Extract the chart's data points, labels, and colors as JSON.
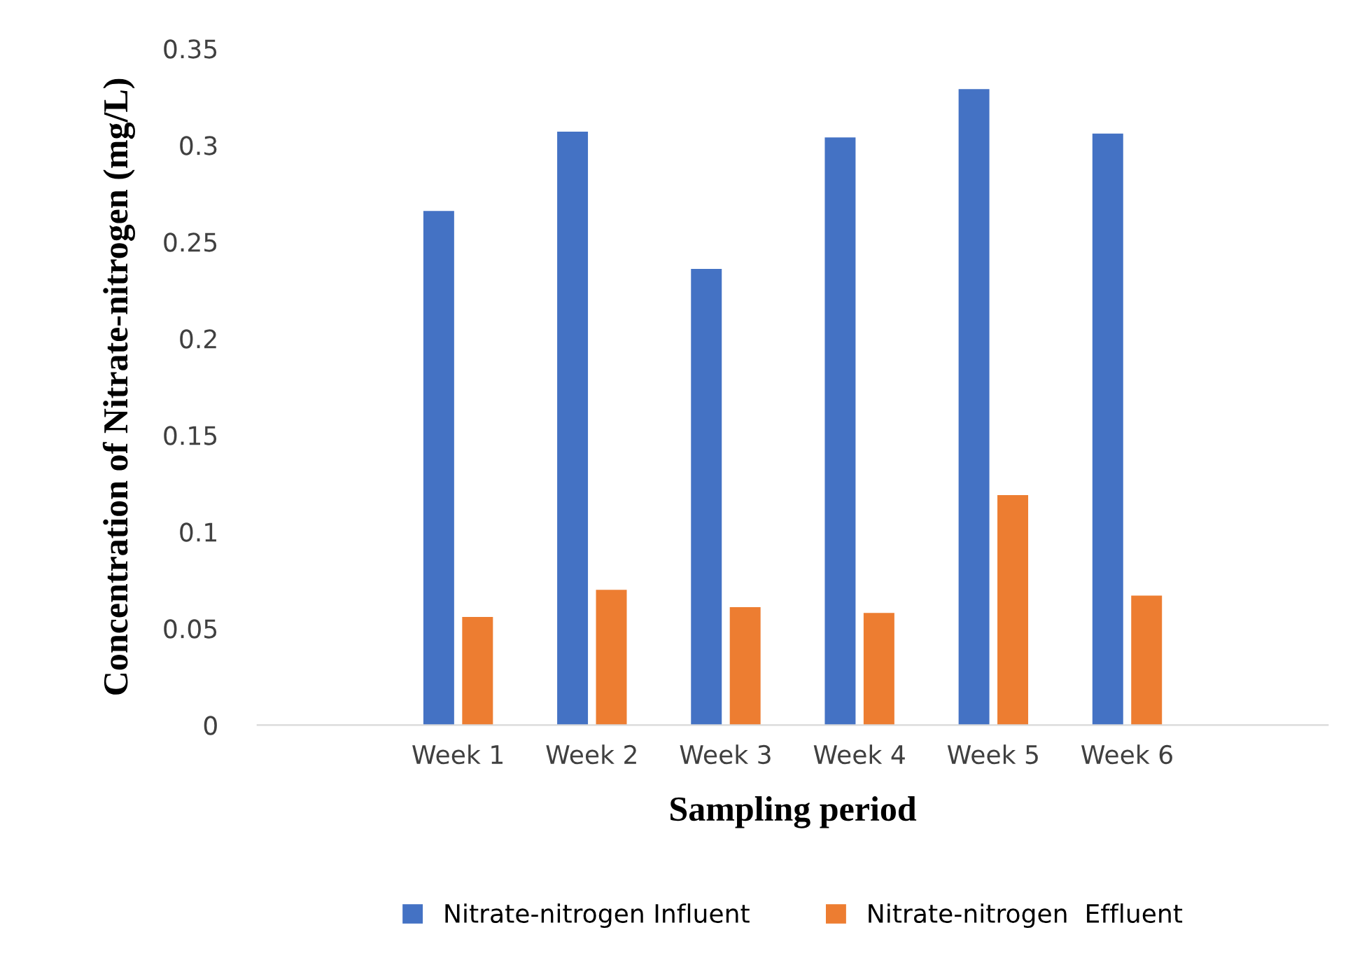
{
  "chart_data": {
    "type": "bar",
    "xlabel": "Sampling period",
    "ylabel": "Concentration of Nitrate-nitrogen (mg/L)",
    "categories": [
      null,
      "Week 1",
      "Week 2",
      "Week 3",
      "Week 4",
      "Week 5",
      "Week 6",
      null
    ],
    "series": [
      {
        "name": "Nitrate-nitrogen Influent",
        "color": "#4472c4",
        "values": [
          null,
          0.266,
          0.307,
          0.236,
          0.304,
          0.329,
          0.306,
          null
        ]
      },
      {
        "name": "Nitrate-nitrogen  Effluent",
        "color": "#ed7d31",
        "values": [
          null,
          0.056,
          0.07,
          0.061,
          0.058,
          0.119,
          0.067,
          null
        ]
      }
    ],
    "ylim": [
      0,
      0.35
    ],
    "yticks": [
      0,
      0.05,
      0.1,
      0.15,
      0.2,
      0.25,
      0.3,
      0.35
    ],
    "grid": false,
    "legend": "bottom"
  }
}
